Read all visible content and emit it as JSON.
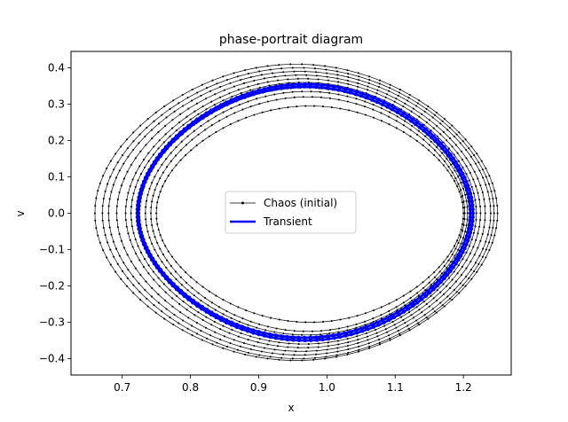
{
  "chart_data": {
    "type": "line",
    "title": "phase-portrait diagram",
    "xlabel": "x",
    "ylabel": "v",
    "xlim": [
      0.625,
      1.27
    ],
    "ylim": [
      -0.445,
      0.445
    ],
    "xticks": [
      0.7,
      0.8,
      0.9,
      1.0,
      1.1,
      1.2
    ],
    "xtick_labels": [
      "0.7",
      "0.8",
      "0.9",
      "1.0",
      "1.1",
      "1.2"
    ],
    "yticks": [
      -0.4,
      -0.3,
      -0.2,
      -0.1,
      0.0,
      0.1,
      0.2,
      0.3,
      0.4
    ],
    "ytick_labels": [
      "−0.4",
      "−0.3",
      "−0.2",
      "−0.1",
      "0.0",
      "0.1",
      "0.2",
      "0.3",
      "0.4"
    ],
    "grid": false,
    "legend_position": "center",
    "series": [
      {
        "name": "Chaos (initial)",
        "color": "#000000",
        "marker": "dot",
        "orbits": [
          {
            "center_x": 0.955,
            "rx": 0.295,
            "top": 0.41,
            "bottom": -0.405
          },
          {
            "center_x": 0.958,
            "rx": 0.287,
            "top": 0.4,
            "bottom": -0.4
          },
          {
            "center_x": 0.96,
            "rx": 0.28,
            "top": 0.39,
            "bottom": -0.39
          },
          {
            "center_x": 0.962,
            "rx": 0.27,
            "top": 0.38,
            "bottom": -0.38
          },
          {
            "center_x": 0.965,
            "rx": 0.26,
            "top": 0.37,
            "bottom": -0.37
          },
          {
            "center_x": 0.966,
            "rx": 0.253,
            "top": 0.36,
            "bottom": -0.36
          },
          {
            "center_x": 0.968,
            "rx": 0.243,
            "top": 0.345,
            "bottom": -0.345
          },
          {
            "center_x": 0.97,
            "rx": 0.236,
            "top": 0.335,
            "bottom": -0.335
          },
          {
            "center_x": 0.972,
            "rx": 0.23,
            "top": 0.32,
            "bottom": -0.325
          },
          {
            "center_x": 0.975,
            "rx": 0.225,
            "top": 0.295,
            "bottom": -0.3
          }
        ]
      },
      {
        "name": "Transient",
        "color": "#0000ff",
        "marker": "dot",
        "orbits": [
          {
            "center_x": 0.968,
            "rx": 0.246,
            "top": 0.355,
            "bottom": -0.35
          },
          {
            "center_x": 0.967,
            "rx": 0.243,
            "top": 0.348,
            "bottom": -0.342
          }
        ]
      }
    ]
  }
}
